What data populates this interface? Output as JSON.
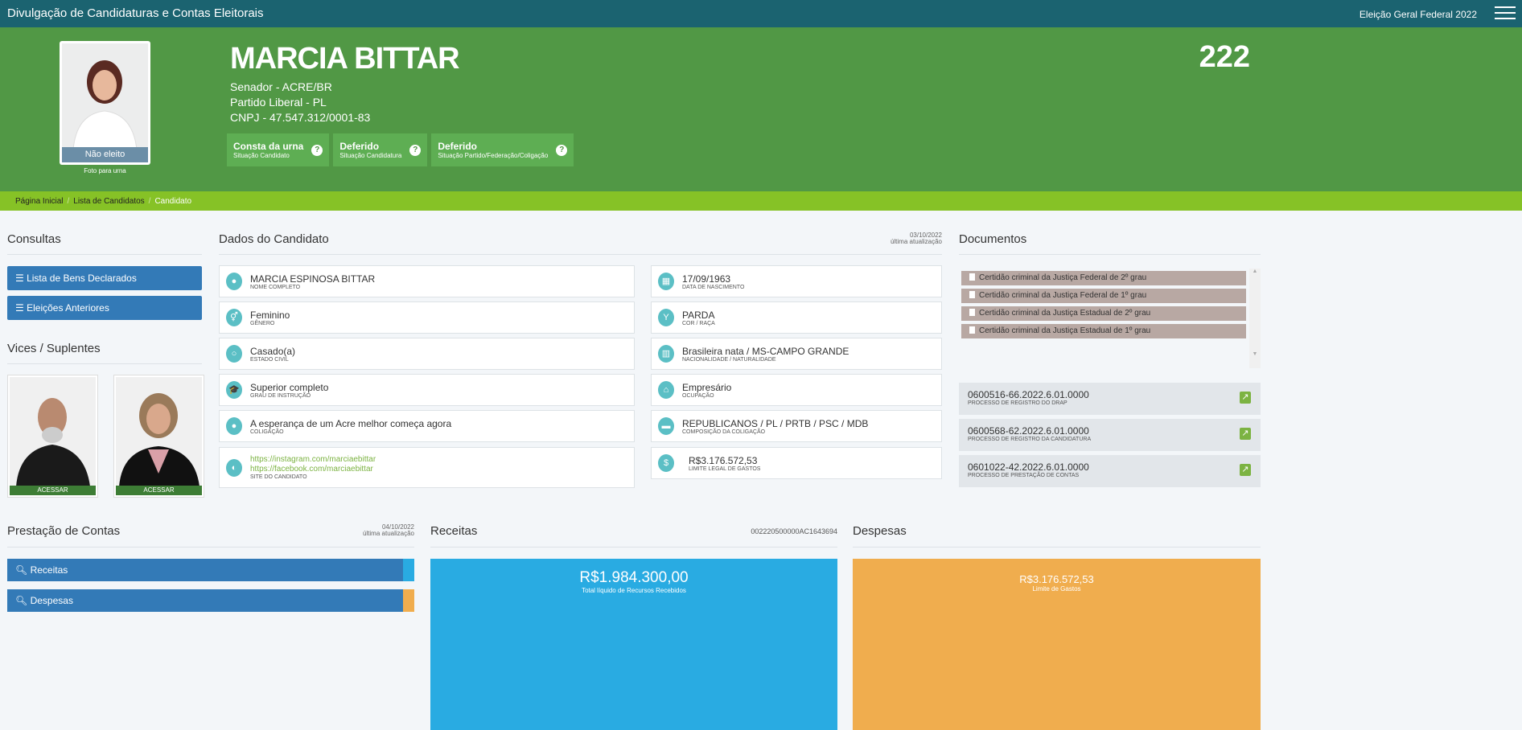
{
  "topbar": {
    "title": "Divulgação de Candidaturas e Contas Eleitorais",
    "election": "Eleição Geral Federal 2022",
    "menu_icon": "hamburger-icon"
  },
  "candidate": {
    "photo_status": "Não eleito",
    "photo_caption": "Foto para urna",
    "name": "MARCIA BITTAR",
    "office": "Senador - ACRE/BR",
    "party": "Partido Liberal - PL",
    "cnpj": "CNPJ - 47.547.312/0001-83",
    "number": "222",
    "badges": [
      {
        "value": "Consta da urna",
        "label": "Situação Candidato"
      },
      {
        "value": "Deferido",
        "label": "Situação Candidatura"
      },
      {
        "value": "Deferido",
        "label": "Situação Partido/Federação/Coligação"
      }
    ]
  },
  "breadcrumb": [
    "Página Inicial",
    "Lista de Candidatos",
    "Candidato"
  ],
  "consultas": {
    "title": "Consultas",
    "buttons": [
      "Lista de Bens Declarados",
      "Eleições Anteriores"
    ]
  },
  "vices": {
    "title": "Vices / Suplentes",
    "access_label": "ACESSAR"
  },
  "dados": {
    "title": "Dados do Candidato",
    "updated_date": "03/10/2022",
    "updated_label": "última atualização",
    "left": [
      {
        "value": "MARCIA ESPINOSA BITTAR",
        "label": "NOME COMPLETO",
        "icon": "user-icon"
      },
      {
        "value": "Feminino",
        "label": "GÊNERO",
        "icon": "gender-icon"
      },
      {
        "value": "Casado(a)",
        "label": "ESTADO CIVIL",
        "icon": "ring-icon"
      },
      {
        "value": "Superior completo",
        "label": "GRAU DE INSTRUÇÃO",
        "icon": "graduation-cap-icon"
      },
      {
        "value": "A esperança de um Acre melhor começa agora",
        "label": "COLIGAÇÃO",
        "icon": "group-icon"
      }
    ],
    "sites": {
      "links": [
        "https://instagram.com/marciaebittar",
        "https://facebook.com/marciaebittar"
      ],
      "label": "SITE DO CANDIDATO"
    },
    "right": [
      {
        "value": "17/09/1963",
        "label": "DATA DE NASCIMENTO",
        "icon": "calendar-icon"
      },
      {
        "value": "PARDA",
        "label": "COR / RAÇA",
        "icon": "person-icon"
      },
      {
        "value": "Brasileira nata / MS-CAMPO GRANDE",
        "label": "NACIONALIDADE / NATURALIDADE",
        "icon": "map-icon"
      },
      {
        "value": "Empresário",
        "label": "OCUPAÇÃO",
        "icon": "bank-icon"
      },
      {
        "value": "REPUBLICANOS / PL / PRTB / PSC / MDB",
        "label": "COMPOSIÇÃO DA COLIGAÇÃO",
        "icon": "folder-icon"
      },
      {
        "value": "R$3.176.572,53",
        "label": "LIMITE LEGAL DE GASTOS",
        "icon": "dollar-icon"
      }
    ]
  },
  "documentos": {
    "title": "Documentos",
    "items": [
      "Certidão criminal da Justiça Federal de 2º grau",
      "Certidão criminal da Justiça Federal de 1º grau",
      "Certidão criminal da Justiça Estadual de 2º grau",
      "Certidão criminal da Justiça Estadual de 1º grau"
    ],
    "processos": [
      {
        "value": "0600516-66.2022.6.01.0000",
        "label": "PROCESSO DE REGISTRO DO DRAP"
      },
      {
        "value": "0600568-62.2022.6.01.0000",
        "label": "PROCESSO DE REGISTRO DA CANDIDATURA"
      },
      {
        "value": "0601022-42.2022.6.01.0000",
        "label": "PROCESSO DE PRESTAÇÃO DE CONTAS"
      }
    ]
  },
  "prestacao": {
    "title": "Prestação de Contas",
    "updated_date": "04/10/2022",
    "updated_label": "última atualização",
    "buttons": [
      "Receitas",
      "Despesas"
    ]
  },
  "receitas": {
    "title": "Receitas",
    "code": "002220500000AC1643694",
    "value": "R$1.984.300,00",
    "label": "Total líquido de Recursos Recebidos",
    "color": "#29abe2"
  },
  "despesas": {
    "title": "Despesas",
    "value": "R$3.176.572,53",
    "label": "Limite de Gastos",
    "color": "#f0ad4e"
  }
}
